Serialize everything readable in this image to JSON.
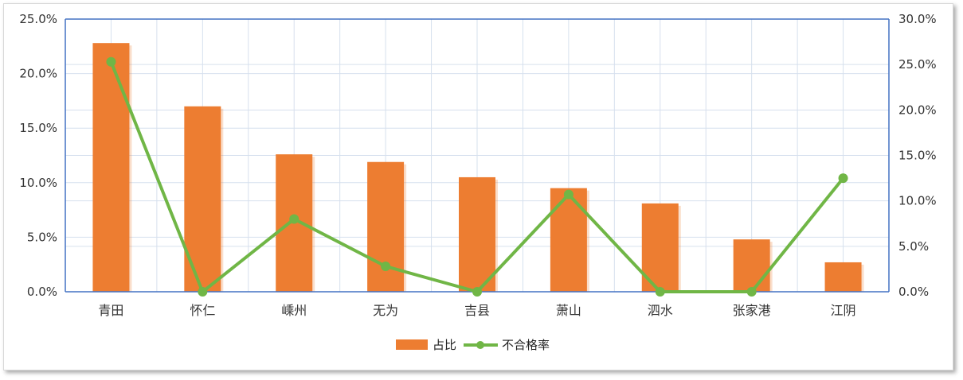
{
  "chart_data": {
    "type": "bar",
    "categories": [
      "青田",
      "怀仁",
      "嵊州",
      "无为",
      "吉县",
      "萧山",
      "泗水",
      "张家港",
      "江阴"
    ],
    "series": [
      {
        "name": "占比",
        "type": "bar",
        "axis": "left",
        "color": "#ED7D31",
        "values": [
          22.8,
          17.0,
          12.6,
          11.9,
          10.5,
          9.5,
          8.1,
          4.8,
          2.7
        ]
      },
      {
        "name": "不合格率",
        "type": "line",
        "axis": "right",
        "color": "#70B646",
        "values": [
          25.3,
          0.0,
          8.0,
          2.8,
          0.0,
          10.7,
          0.0,
          0.0,
          12.5
        ]
      }
    ],
    "y_left": {
      "min": 0,
      "max": 25,
      "step": 5,
      "ticks": [
        "0.0%",
        "5.0%",
        "10.0%",
        "15.0%",
        "20.0%",
        "25.0%"
      ]
    },
    "y_right": {
      "min": 0,
      "max": 30,
      "step": 5,
      "ticks": [
        "0.0%",
        "5.0%",
        "10.0%",
        "15.0%",
        "20.0%",
        "25.0%",
        "30.0%"
      ]
    },
    "grid": true,
    "legend_position": "bottom"
  }
}
